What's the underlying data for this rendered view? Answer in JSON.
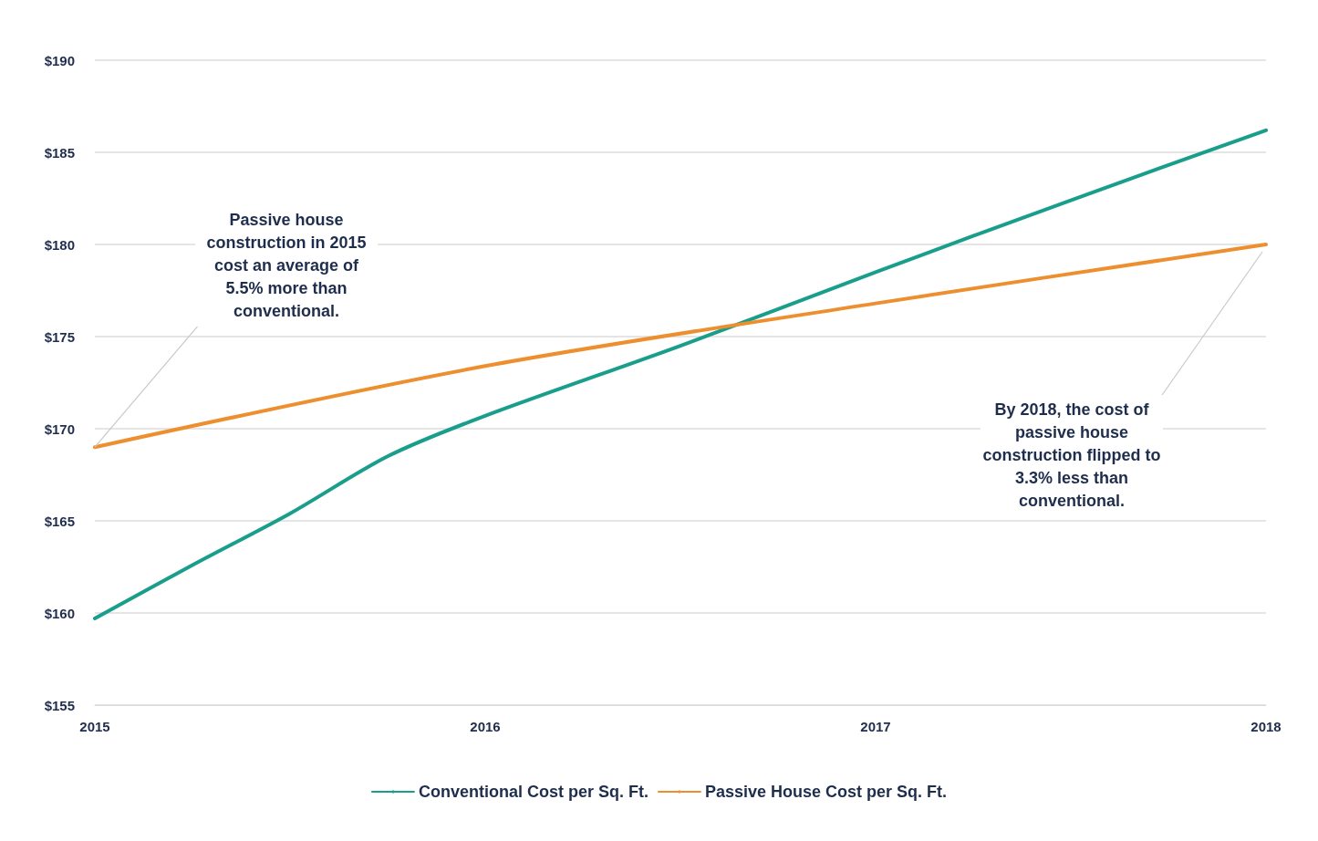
{
  "chart_data": {
    "type": "line",
    "x": [
      2015,
      2015.25,
      2015.5,
      2015.75,
      2016,
      2016.5,
      2017,
      2017.5,
      2018
    ],
    "series": [
      {
        "name": "Conventional Cost per Sq. Ft.",
        "color": "#1a9e8c",
        "values": [
          159.7,
          162.6,
          165.4,
          168.5,
          170.7,
          174.5,
          178.5,
          182.4,
          186.2
        ]
      },
      {
        "name": "Passive House Cost per Sq. Ft.",
        "color": "#ee8f2f",
        "x": [
          2015,
          2016,
          2017,
          2018
        ],
        "values": [
          169.0,
          173.4,
          176.8,
          180.0
        ]
      }
    ],
    "xlim": [
      2015,
      2018
    ],
    "xticks": [
      2015,
      2016,
      2017,
      2018
    ],
    "ylim": [
      155,
      190
    ],
    "yticks": [
      {
        "value": 155,
        "label": "$155"
      },
      {
        "value": 160,
        "label": "$160"
      },
      {
        "value": 165,
        "label": "$165"
      },
      {
        "value": 170,
        "label": "$170"
      },
      {
        "value": 175,
        "label": "$175"
      },
      {
        "value": 180,
        "label": "$180"
      },
      {
        "value": 185,
        "label": "$185"
      },
      {
        "value": 190,
        "label": "$190"
      }
    ],
    "grid": "y",
    "legend": "bottom",
    "marker": "none",
    "line_style": "solid",
    "annotations": [
      {
        "text": "Passive house construction in 2015 cost an average of 5.5% more than conventional.",
        "x": 2015,
        "y": 169.0
      },
      {
        "text": "By 2018, the cost of passive house construction flipped to 3.3% less than conventional.",
        "x": 2018,
        "y": 180.0
      }
    ]
  }
}
